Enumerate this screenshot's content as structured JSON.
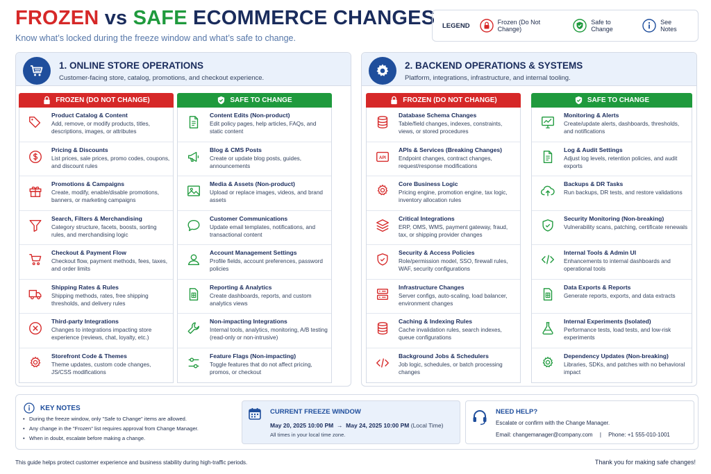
{
  "header": {
    "title_frozen": "FROZEN",
    "title_vs": "vs",
    "title_safe": "SAFE",
    "title_rest": "ECOMMERCE CHANGES",
    "subtitle": "Know what’s locked during the freeze window and what’s safe to change."
  },
  "legend": {
    "title": "LEGEND",
    "frozen": "Frozen (Do Not Change)",
    "safe": "Safe to Change",
    "notes": "See Notes"
  },
  "colors": {
    "red": "#d62828",
    "green": "#1f9a3d",
    "navy": "#1a2c5c",
    "blue": "#1f4e9c"
  },
  "sections": [
    {
      "title": "1. ONLINE STORE OPERATIONS",
      "description": "Customer-facing store, catalog, promotions, and checkout experience.",
      "icon": "shopping-cart-icon",
      "frozen_header": "FROZEN (DO NOT CHANGE)",
      "safe_header": "SAFE TO CHANGE",
      "frozen": [
        {
          "title": "Product Catalog & Content",
          "desc": "Add, remove, or modify products, titles, descriptions, images, or attributes",
          "icon": "tag-icon"
        },
        {
          "title": "Pricing & Discounts",
          "desc": "List prices, sale prices, promo codes, coupons, and discount rules",
          "icon": "dollar-icon"
        },
        {
          "title": "Promotions & Campaigns",
          "desc": "Create, modify, enable/disable promotions, banners, or marketing campaigns",
          "icon": "gift-icon"
        },
        {
          "title": "Search, Filters & Merchandising",
          "desc": "Category structure, facets, boosts, sorting rules, and merchandising logic",
          "icon": "filter-icon"
        },
        {
          "title": "Checkout & Payment Flow",
          "desc": "Checkout flow, payment methods, fees, taxes, and order limits",
          "icon": "cart-icon"
        },
        {
          "title": "Shipping Rates & Rules",
          "desc": "Shipping methods, rates, free shipping thresholds, and delivery rules",
          "icon": "truck-icon"
        },
        {
          "title": "Third-party Integrations",
          "desc": "Changes to integrations impacting store experience (reviews, chat, loyalty, etc.)",
          "icon": "x-circle-icon"
        },
        {
          "title": "Storefront Code & Themes",
          "desc": "Theme updates, custom code changes, JS/CSS modifications",
          "icon": "gear-icon"
        }
      ],
      "safe": [
        {
          "title": "Content Edits (Non-product)",
          "desc": "Edit policy pages, help articles, FAQs, and static content",
          "icon": "document-icon"
        },
        {
          "title": "Blog & CMS Posts",
          "desc": "Create or update blog posts, guides, announcements",
          "icon": "megaphone-icon"
        },
        {
          "title": "Media & Assets (Non-product)",
          "desc": "Upload or replace images, videos, and brand assets",
          "icon": "image-icon"
        },
        {
          "title": "Customer Communications",
          "desc": "Update email templates, notifications, and transactional content",
          "icon": "chat-icon"
        },
        {
          "title": "Account Management Settings",
          "desc": "Profile fields, account preferences, password policies",
          "icon": "user-icon"
        },
        {
          "title": "Reporting & Analytics",
          "desc": "Create dashboards, reports, and custom analytics views",
          "icon": "spreadsheet-icon"
        },
        {
          "title": "Non-impacting Integrations",
          "desc": "Internal tools, analytics, monitoring, A/B testing (read-only or non-intrusive)",
          "icon": "wrench-icon"
        },
        {
          "title": "Feature Flags (Non-impacting)",
          "desc": "Toggle features that do not affect pricing, promos, or checkout",
          "icon": "toggle-icon"
        }
      ]
    },
    {
      "title": "2. BACKEND OPERATIONS & SYSTEMS",
      "description": "Platform, integrations, infrastructure, and internal tooling.",
      "icon": "cog-icon",
      "frozen_header": "FROZEN (DO NOT CHANGE)",
      "safe_header": "SAFE TO CHANGE",
      "frozen": [
        {
          "title": "Database Schema Changes",
          "desc": "Table/field changes, indexes, constraints, views, or stored procedures",
          "icon": "database-icon"
        },
        {
          "title": "APIs & Services (Breaking Changes)",
          "desc": "Endpoint changes, contract changes, request/response modifications",
          "icon": "api-icon"
        },
        {
          "title": "Core Business Logic",
          "desc": "Pricing engine, promotion engine, tax logic, inventory allocation rules",
          "icon": "gear-icon"
        },
        {
          "title": "Critical Integrations",
          "desc": "ERP, OMS, WMS, payment gateway, fraud, tax, or shipping provider changes",
          "icon": "layers-icon"
        },
        {
          "title": "Security & Access Policies",
          "desc": "Role/permission model, SSO, firewall rules, WAF, security configurations",
          "icon": "shield-icon"
        },
        {
          "title": "Infrastructure Changes",
          "desc": "Server configs, auto-scaling, load balancer, environment changes",
          "icon": "server-icon"
        },
        {
          "title": "Caching & Indexing Rules",
          "desc": "Cache invalidation rules, search indexes, queue configurations",
          "icon": "database-icon"
        },
        {
          "title": "Background Jobs & Schedulers",
          "desc": "Job logic, schedules, or batch processing changes",
          "icon": "code-icon"
        }
      ],
      "safe": [
        {
          "title": "Monitoring & Alerts",
          "desc": "Create/update alerts, dashboards, thresholds, and notifications",
          "icon": "monitor-chart-icon"
        },
        {
          "title": "Log & Audit Settings",
          "desc": "Adjust log levels, retention policies, and audit exports",
          "icon": "document-icon"
        },
        {
          "title": "Backups & DR Tasks",
          "desc": "Run backups, DR tests, and restore validations",
          "icon": "cloud-upload-icon"
        },
        {
          "title": "Security Monitoring (Non-breaking)",
          "desc": "Vulnerability scans, patching, certificate renewals",
          "icon": "shield-check-icon"
        },
        {
          "title": "Internal Tools & Admin UI",
          "desc": "Enhancements to internal dashboards and operational tools",
          "icon": "code-icon"
        },
        {
          "title": "Data Exports & Reports",
          "desc": "Generate reports, exports, and data extracts",
          "icon": "spreadsheet-icon"
        },
        {
          "title": "Internal Experiments (Isolated)",
          "desc": "Performance tests, load tests, and low-risk experiments",
          "icon": "flask-icon"
        },
        {
          "title": "Dependency Updates (Non-breaking)",
          "desc": "Libraries, SDKs, and patches with no behavioral impact",
          "icon": "gear-icon"
        }
      ]
    }
  ],
  "key_notes": {
    "title": "KEY NOTES",
    "items": [
      "During the freeze window, only \"Safe to Change\" items are allowed.",
      "Any change in the \"Frozen\" list requires approval from Change Manager.",
      "When in doubt, escalate before making a change."
    ]
  },
  "freeze_window": {
    "title": "CURRENT FREEZE WINDOW",
    "start": "May 20, 2025 10:00 PM",
    "arrow": "→",
    "end": "May 24, 2025 10:00 PM",
    "tz": "(Local Time)",
    "note": "All times in your local time zone."
  },
  "need_help": {
    "title": "NEED HELP?",
    "line1": "Escalate or confirm with the Change Manager.",
    "email": "Email:  changemanager@company.com",
    "separator": "|",
    "phone": "Phone:  +1 555-010-1001"
  },
  "footer": {
    "left": "This guide helps protect customer experience and business stability during high-traffic periods.",
    "right": "Thank you for making safe changes!"
  }
}
